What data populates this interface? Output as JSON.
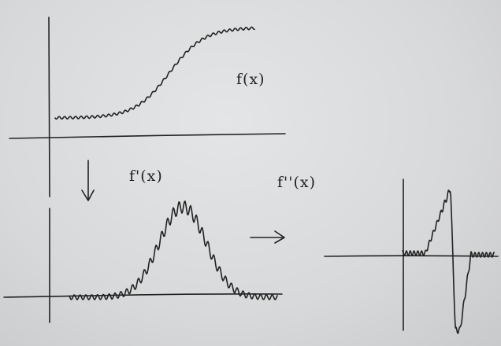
{
  "labels": {
    "f": "f(x)",
    "f_prime": "f'(x)",
    "f_double_prime": "f''(x)"
  },
  "arrows": {
    "down": "↓",
    "right": "→"
  },
  "colors": {
    "background": "#d9dadb",
    "ink": "#222222"
  }
}
